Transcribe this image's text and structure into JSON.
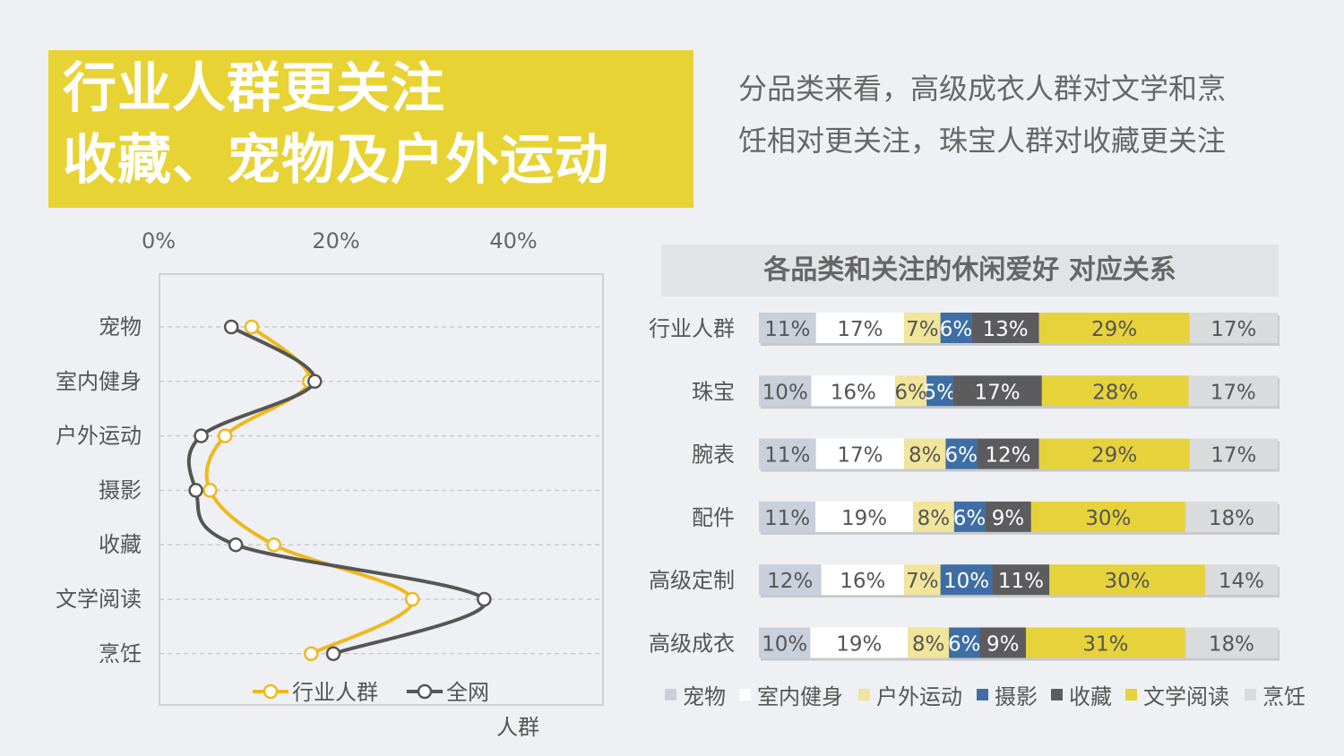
{
  "headline": {
    "line1": "行业人群更关注",
    "line2": "收藏、宠物及户外运动"
  },
  "description": {
    "line1": "分品类来看，高级成衣人群对文学和烹",
    "line2": "饪相对更关注，珠宝人群对收藏更关注"
  },
  "chart_data": [
    {
      "type": "line",
      "orientation": "horizontal",
      "categories": [
        "宠物",
        "室内健身",
        "户外运动",
        "摄影",
        "收藏",
        "文学阅读",
        "烹饪"
      ],
      "series": [
        {
          "name": "行业人群",
          "values": [
            10.5,
            17.0,
            7.5,
            5.8,
            13.0,
            28.6,
            17.2
          ],
          "color": "#f0b81c"
        },
        {
          "name": "全网",
          "values": [
            8.2,
            17.6,
            4.8,
            4.2,
            8.7,
            36.7,
            19.7
          ],
          "color": "#555555"
        }
      ],
      "x_ticks": [
        "0%",
        "20%",
        "40%"
      ],
      "xlim": [
        0,
        50
      ],
      "xlabel": "人群",
      "legend_position": "bottom",
      "grid": true
    },
    {
      "type": "bar",
      "stacked": true,
      "normalized": true,
      "title": "各品类和关注的休闲爱好 对应关系",
      "categories": [
        "行业人群",
        "珠宝",
        "腕表",
        "配件",
        "高级定制",
        "高级成衣"
      ],
      "series": [
        {
          "name": "宠物",
          "color": "#c9cfdb",
          "values": [
            11,
            10,
            11,
            11,
            12,
            10
          ]
        },
        {
          "name": "室内健身",
          "color": "#ffffff",
          "values": [
            17,
            16,
            17,
            19,
            16,
            19
          ]
        },
        {
          "name": "户外运动",
          "color": "#f0e59a",
          "values": [
            7,
            6,
            8,
            8,
            7,
            8
          ]
        },
        {
          "name": "摄影",
          "color": "#3e6ea5",
          "values": [
            6,
            5,
            6,
            6,
            10,
            6
          ]
        },
        {
          "name": "收藏",
          "color": "#5c5c5e",
          "values": [
            13,
            17,
            12,
            9,
            11,
            9
          ]
        },
        {
          "name": "文学阅读",
          "color": "#e6d23a",
          "values": [
            29,
            28,
            29,
            30,
            30,
            31
          ]
        },
        {
          "name": "烹饪",
          "color": "#dadbdd",
          "values": [
            17,
            17,
            17,
            18,
            14,
            18
          ]
        }
      ],
      "label_colors": [
        "#555555",
        "#555555",
        "#555555",
        "#ffffff",
        "#ffffff",
        "#555555",
        "#555555"
      ],
      "legend_position": "bottom"
    }
  ]
}
